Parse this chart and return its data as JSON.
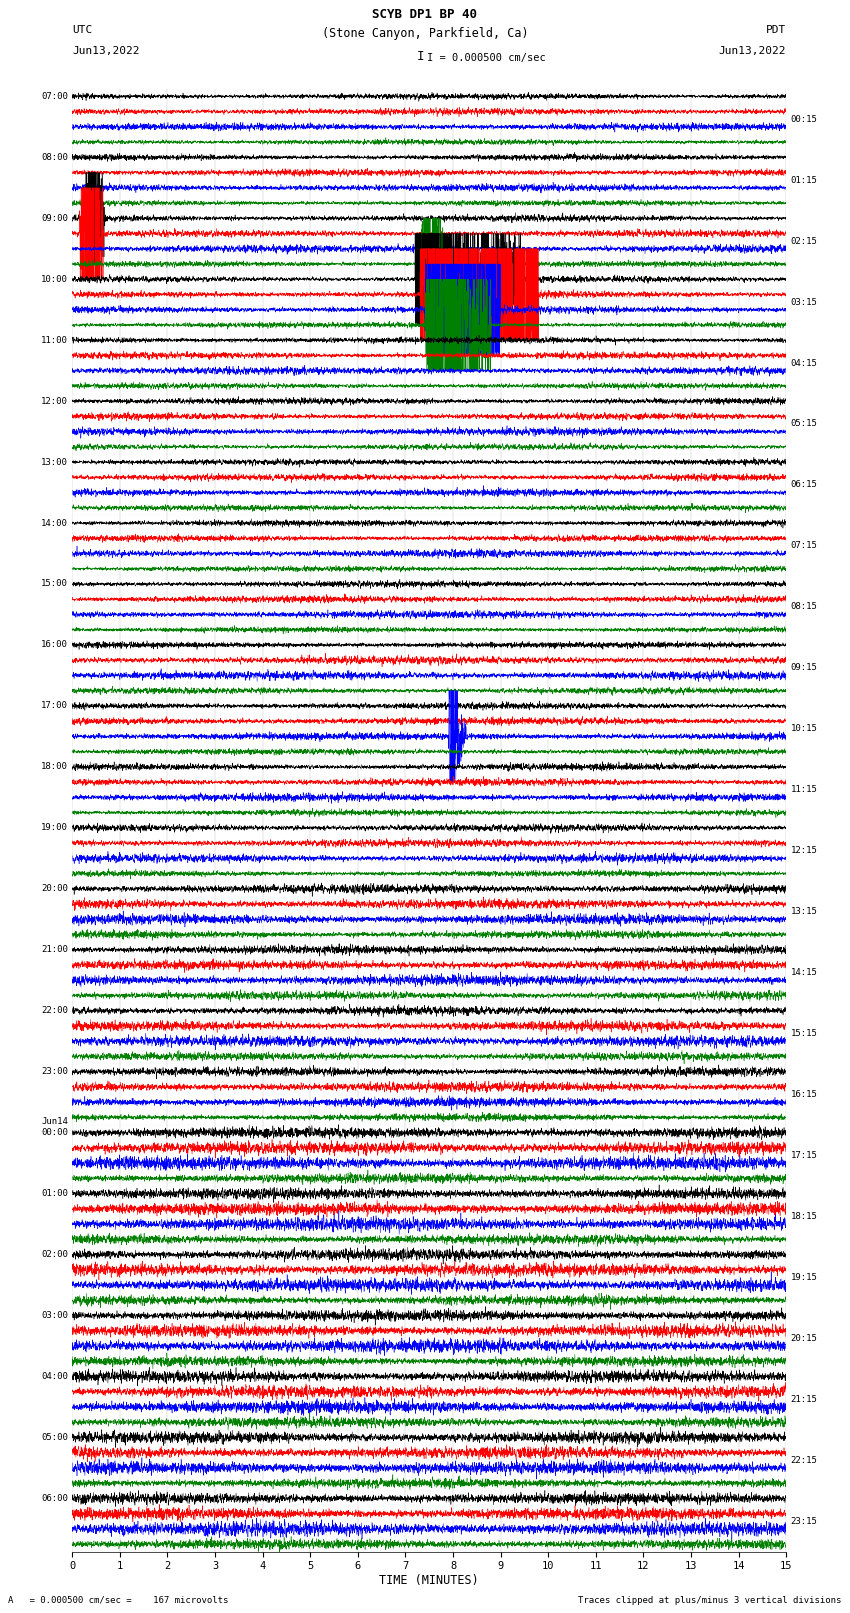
{
  "title_line1": "SCYB DP1 BP 40",
  "title_line2": "(Stone Canyon, Parkfield, Ca)",
  "scale_bar_label": "I = 0.000500 cm/sec",
  "left_header": "UTC",
  "left_date": "Jun13,2022",
  "right_header": "PDT",
  "right_date": "Jun13,2022",
  "xlabel": "TIME (MINUTES)",
  "footer_left": "A   = 0.000500 cm/sec =    167 microvolts",
  "footer_right": "Traces clipped at plus/minus 3 vertical divisions",
  "bg_color": "#ffffff",
  "trace_colors": [
    "black",
    "red",
    "blue",
    "green"
  ],
  "left_times": [
    "07:00",
    "08:00",
    "09:00",
    "10:00",
    "11:00",
    "12:00",
    "13:00",
    "14:00",
    "15:00",
    "16:00",
    "17:00",
    "18:00",
    "19:00",
    "20:00",
    "21:00",
    "22:00",
    "23:00",
    "Jun14\n00:00",
    "01:00",
    "02:00",
    "03:00",
    "04:00",
    "05:00",
    "06:00"
  ],
  "right_times": [
    "00:15",
    "01:15",
    "02:15",
    "03:15",
    "04:15",
    "05:15",
    "06:15",
    "07:15",
    "08:15",
    "09:15",
    "10:15",
    "11:15",
    "12:15",
    "13:15",
    "14:15",
    "15:15",
    "16:15",
    "17:15",
    "18:15",
    "19:15",
    "20:15",
    "21:15",
    "22:15",
    "23:15"
  ],
  "n_rows": 24,
  "traces_per_row": 4,
  "x_min": 0,
  "x_max": 15,
  "x_ticks": [
    0,
    1,
    2,
    3,
    4,
    5,
    6,
    7,
    8,
    9,
    10,
    11,
    12,
    13,
    14,
    15
  ],
  "n_points": 4500,
  "base_amp": 0.055,
  "clip_divs": 3.0
}
